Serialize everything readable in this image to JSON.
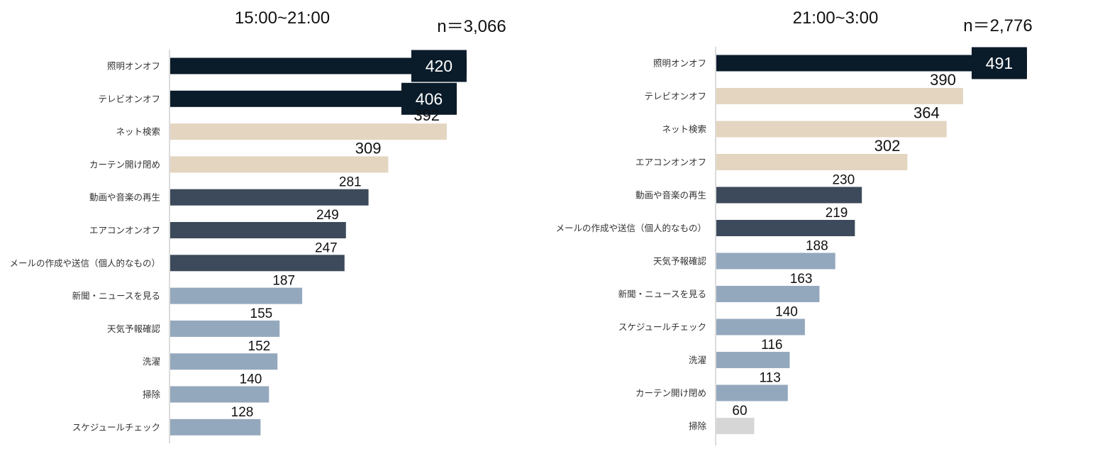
{
  "chart_data": [
    {
      "type": "bar",
      "orientation": "horizontal",
      "title": "15:00~21:00",
      "n_label": "n＝3,066",
      "categories": [
        "照明オンオフ",
        "テレビオンオフ",
        "ネット検索",
        "カーテン開け閉め",
        "動画や音楽の再生",
        "エアコンオンオフ",
        "メールの作成や送信（個人的なもの）",
        "新聞・ニュースを見る",
        "天気予報確認",
        "洗濯",
        "掃除",
        "スケジュールチェック"
      ],
      "values": [
        420,
        406,
        392,
        309,
        281,
        249,
        247,
        187,
        155,
        152,
        140,
        128
      ],
      "tiers": [
        0,
        0,
        1,
        1,
        2,
        2,
        2,
        3,
        3,
        3,
        3,
        3
      ],
      "boxed_labels": [
        true,
        true,
        false,
        false,
        false,
        false,
        false,
        false,
        false,
        false,
        false,
        false
      ],
      "xlim": [
        0,
        500
      ]
    },
    {
      "type": "bar",
      "orientation": "horizontal",
      "title": "21:00~3:00",
      "n_label": "n＝2,776",
      "categories": [
        "照明オンオフ",
        "テレビオンオフ",
        "ネット検索",
        "エアコンオンオフ",
        "動画や音楽の再生",
        "メールの作成や送信（個人的なもの）",
        "天気予報確認",
        "新聞・ニュースを見る",
        "スケジュールチェック",
        "洗濯",
        "カーテン開け閉め",
        "掃除"
      ],
      "values": [
        491,
        390,
        364,
        302,
        230,
        219,
        188,
        163,
        140,
        116,
        113,
        60
      ],
      "tiers": [
        0,
        1,
        1,
        1,
        2,
        2,
        3,
        3,
        3,
        3,
        3,
        4
      ],
      "boxed_labels": [
        true,
        false,
        false,
        false,
        false,
        false,
        false,
        false,
        false,
        false,
        false,
        false
      ],
      "xlim": [
        0,
        500
      ]
    }
  ],
  "colors": {
    "tier0": "#0a1b2a",
    "tier1": "#e3d5c0",
    "tier2": "#3c4a5b",
    "tier3": "#94a8bd",
    "tier4": "#d6d6d6"
  }
}
